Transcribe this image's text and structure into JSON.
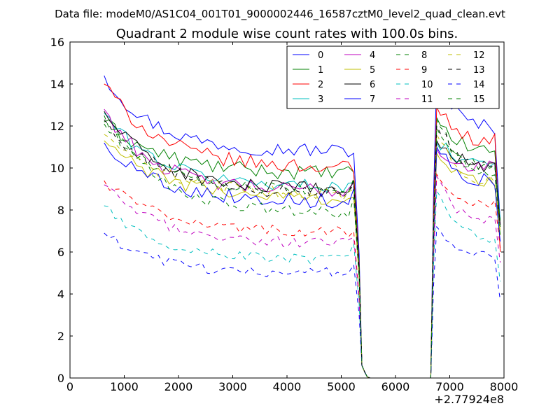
{
  "figure": {
    "suptitle": "Data file: modeM0/AS1C04_001T01_9000002446_16587cztM0_level2_quad_clean.evt"
  },
  "chart_data": {
    "type": "line",
    "title": "Quadrant 2 module wise count rates with 100.0s bins.",
    "xlabel": "",
    "ylabel": "",
    "x_offset_label": "+2.77924e8",
    "xlim": [
      0,
      8000
    ],
    "ylim": [
      0,
      16
    ],
    "xticks": [
      0,
      1000,
      2000,
      3000,
      4000,
      5000,
      6000,
      7000,
      8000
    ],
    "yticks": [
      0,
      2,
      4,
      6,
      8,
      10,
      12,
      14,
      16
    ],
    "grid": false,
    "legend_position": "top-right",
    "legend_columns": 4,
    "bin_seconds": 100,
    "x": {
      "seg1": [
        630,
        730,
        830,
        930,
        1030,
        1130,
        1230,
        1330,
        1430,
        1530,
        1630,
        1730,
        1830,
        1930,
        2030,
        2130,
        2230,
        2330,
        2430,
        2530,
        2630,
        2730,
        2830,
        2930,
        3030,
        3130,
        3230,
        3330,
        3430,
        3530,
        3630,
        3730,
        3830,
        3930,
        4030,
        4130,
        4230,
        4330,
        4430,
        4530,
        4630,
        4730,
        4830,
        4930,
        5030,
        5130,
        5230
      ],
      "drop": [
        5330,
        5380,
        5430,
        5480,
        5530
      ],
      "gap": [
        6000,
        6650
      ],
      "rise": [
        6650,
        6700,
        6760
      ],
      "seg2": [
        6830,
        6930,
        7030,
        7130,
        7230,
        7330,
        7430,
        7530,
        7630,
        7730,
        7830,
        7930
      ]
    },
    "series": [
      {
        "name": "0",
        "color": "#0000ff",
        "dash": "solid",
        "start": 14.4,
        "level": 10.8,
        "tau": 900,
        "amp": 0.35,
        "end": 10.7,
        "peak": 14.4,
        "seg2_level": 11.9,
        "seg2_end": 7.5
      },
      {
        "name": "1",
        "color": "#008000",
        "dash": "solid",
        "start": 12.2,
        "level": 9.7,
        "tau": 1100,
        "amp": 0.35,
        "end": 9.8,
        "peak": 12.4,
        "seg2_level": 10.8,
        "seg2_end": 7.2
      },
      {
        "name": "2",
        "color": "#ff0000",
        "dash": "solid",
        "start": 14.0,
        "level": 10.0,
        "tau": 1000,
        "amp": 0.35,
        "end": 9.8,
        "peak": 12.9,
        "seg2_level": 11.3,
        "seg2_end": 6.0
      },
      {
        "name": "3",
        "color": "#00bfbf",
        "dash": "solid",
        "start": 12.6,
        "level": 9.1,
        "tau": 1000,
        "amp": 0.3,
        "end": 9.3,
        "peak": 11.2,
        "seg2_level": 10.3,
        "seg2_end": 7.6
      },
      {
        "name": "4",
        "color": "#bf00bf",
        "dash": "solid",
        "start": 12.8,
        "level": 8.9,
        "tau": 900,
        "amp": 0.35,
        "end": 9.3,
        "peak": 10.9,
        "seg2_level": 10.0,
        "seg2_end": 7.3
      },
      {
        "name": "5",
        "color": "#bfbf00",
        "dash": "solid",
        "start": 11.3,
        "level": 8.5,
        "tau": 1100,
        "amp": 0.35,
        "end": 8.6,
        "peak": 10.7,
        "seg2_level": 9.3,
        "seg2_end": 6.8
      },
      {
        "name": "6",
        "color": "#000000",
        "dash": "solid",
        "start": 12.7,
        "level": 8.9,
        "tau": 1000,
        "amp": 0.35,
        "end": 9.4,
        "peak": 11.3,
        "seg2_level": 10.1,
        "seg2_end": 7.3
      },
      {
        "name": "7",
        "color": "#0000ff",
        "dash": "solid",
        "start": 11.2,
        "level": 8.4,
        "tau": 1000,
        "amp": 0.35,
        "end": 9.0,
        "peak": 11.0,
        "seg2_level": 9.4,
        "seg2_end": 6.5
      },
      {
        "name": "8",
        "color": "#008000",
        "dash": "dashed",
        "start": 12.5,
        "level": 7.8,
        "tau": 1000,
        "amp": 0.3,
        "end": 8.6,
        "peak": 12.3,
        "seg2_level": 9.6,
        "seg2_end": 6.8
      },
      {
        "name": "9",
        "color": "#ff0000",
        "dash": "dashed",
        "start": 9.4,
        "level": 6.9,
        "tau": 1100,
        "amp": 0.25,
        "end": 7.0,
        "peak": 9.7,
        "seg2_level": 8.2,
        "seg2_end": 6.2
      },
      {
        "name": "10",
        "color": "#00bfbf",
        "dash": "dashed",
        "start": 8.2,
        "level": 5.6,
        "tau": 1000,
        "amp": 0.25,
        "end": 6.4,
        "peak": 8.9,
        "seg2_level": 6.6,
        "seg2_end": 4.6
      },
      {
        "name": "11",
        "color": "#bf00bf",
        "dash": "dashed",
        "start": 9.2,
        "level": 6.4,
        "tau": 1000,
        "amp": 0.25,
        "end": 6.7,
        "peak": 9.6,
        "seg2_level": 7.4,
        "seg2_end": 5.5
      },
      {
        "name": "12",
        "color": "#bfbf00",
        "dash": "dashed",
        "start": 11.6,
        "level": 8.7,
        "tau": 1100,
        "amp": 0.3,
        "end": 9.0,
        "peak": 11.6,
        "seg2_level": 9.4,
        "seg2_end": 7.0
      },
      {
        "name": "13",
        "color": "#000000",
        "dash": "dashed",
        "start": 12.3,
        "level": 8.8,
        "tau": 1000,
        "amp": 0.35,
        "end": 9.2,
        "peak": 12.0,
        "seg2_level": 9.9,
        "seg2_end": 7.2
      },
      {
        "name": "14",
        "color": "#0000ff",
        "dash": "dashed",
        "start": 6.9,
        "level": 5.0,
        "tau": 900,
        "amp": 0.25,
        "end": 5.4,
        "peak": 7.2,
        "seg2_level": 5.8,
        "seg2_end": 3.7
      },
      {
        "name": "15",
        "color": "#008000",
        "dash": "dashed",
        "start": 12.1,
        "level": 8.9,
        "tau": 1000,
        "amp": 0.3,
        "end": 9.5,
        "peak": 11.9,
        "seg2_level": 10.0,
        "seg2_end": 7.5
      }
    ]
  }
}
